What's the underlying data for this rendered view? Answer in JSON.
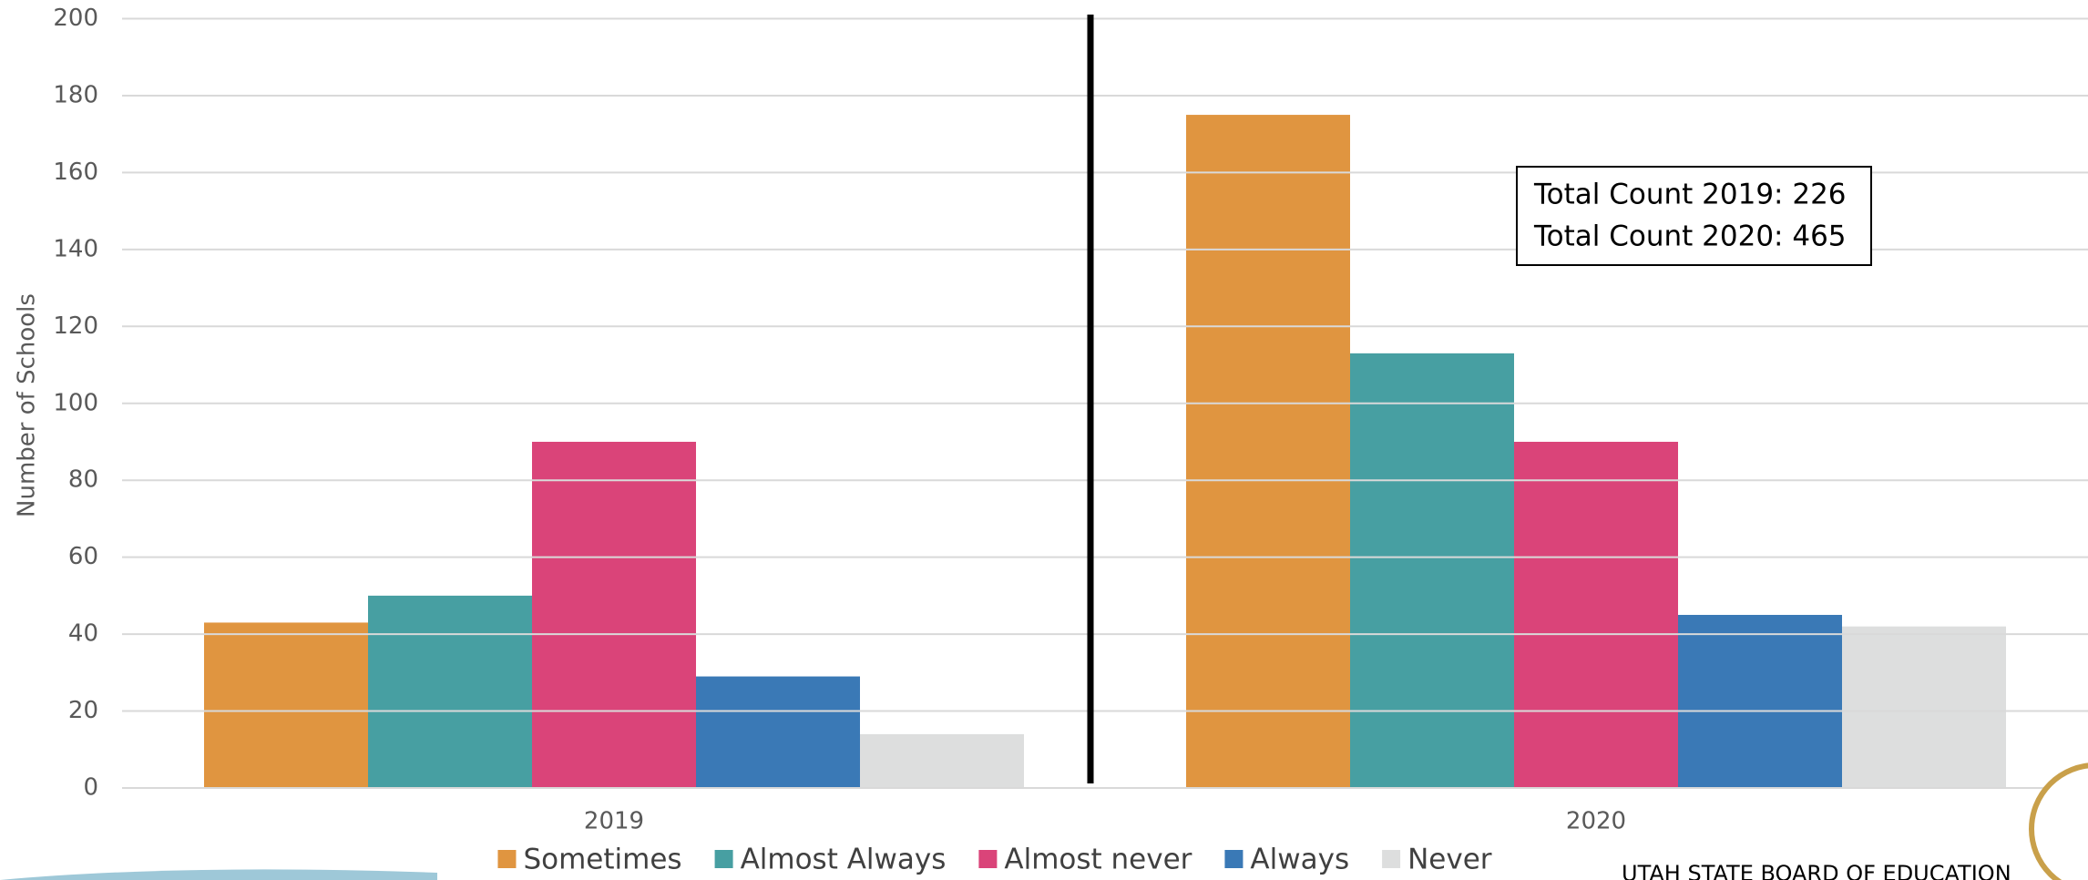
{
  "chart_data": {
    "type": "bar",
    "y_label": "Number of Schools",
    "categories": [
      "2019",
      "2020"
    ],
    "series": [
      {
        "name": "Sometimes",
        "color": "#E09540",
        "values": [
          43,
          175
        ]
      },
      {
        "name": "Almost Always",
        "color": "#479FA2",
        "values": [
          50,
          113
        ]
      },
      {
        "name": "Almost never",
        "color": "#DA4479",
        "values": [
          90,
          90
        ]
      },
      {
        "name": "Always",
        "color": "#3A79B6",
        "values": [
          29,
          45
        ]
      },
      {
        "name": "Never",
        "color": "#DDDEDE",
        "values": [
          14,
          42
        ]
      }
    ],
    "ylim": [
      0,
      200
    ],
    "yticks": [
      0,
      20,
      40,
      60,
      80,
      100,
      120,
      140,
      160,
      180,
      200
    ],
    "grid": true,
    "legend": "bottom",
    "annotations": [
      "Total Count 2019: 226",
      "Total Count 2020: 465"
    ]
  },
  "footer": "UTAH STATE BOARD OF EDUCATION"
}
